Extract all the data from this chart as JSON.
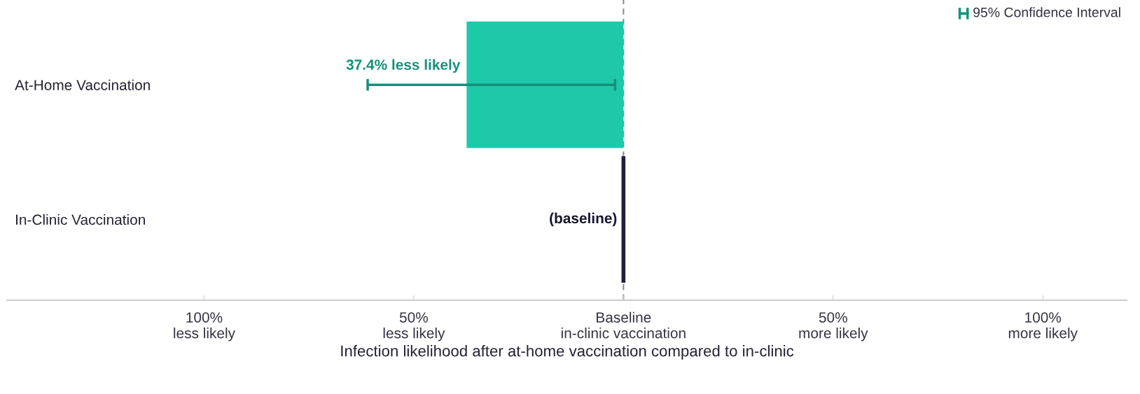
{
  "chart_data": {
    "type": "bar",
    "orientation": "horizontal",
    "categories": [
      "At-Home Vaccination",
      "In-Clinic Vaccination"
    ],
    "values": [
      -37.4,
      0
    ],
    "colors": [
      "#1dc9a9",
      "#1f2040"
    ],
    "errors": [
      [
        -61,
        -2
      ],
      null
    ],
    "xlim": [
      -147,
      120
    ],
    "xticks": [
      {
        "value": -100,
        "label": "100%\nless likely"
      },
      {
        "value": -50,
        "label": "50%\nless likely"
      },
      {
        "value": 0,
        "label": "Baseline\nin-clinic vaccination"
      },
      {
        "value": 50,
        "label": "50%\nmore likely"
      },
      {
        "value": 100,
        "label": "100%\nmore likely"
      }
    ],
    "xlabel": "Infection likelihood after at-home vaccination compared to in-clinic",
    "ref_lines": [
      {
        "axis": "x",
        "value": 0,
        "color": "#8a8a9a",
        "line_style": "dashed"
      }
    ],
    "annotations": [
      {
        "text": "37.4% less likely",
        "x": -37.4,
        "y": "At-Home Vaccination"
      },
      {
        "text": "(baseline)",
        "x": 0,
        "y": "In-Clinic Vaccination"
      },
      "95% Confidence Interval"
    ],
    "grid": false
  }
}
